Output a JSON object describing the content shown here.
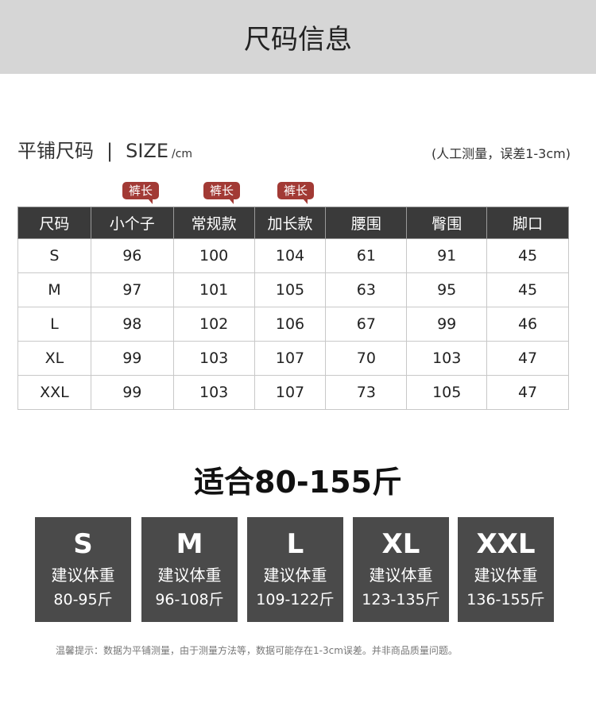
{
  "banner": {
    "title": "尺码信息"
  },
  "section": {
    "title": "平铺尺码",
    "separator": "|",
    "size_label": "SIZE",
    "unit": "/cm",
    "note": "(人工测量，误差1-3cm)"
  },
  "tags": [
    "裤长",
    "裤长",
    "裤长"
  ],
  "colors": {
    "header_bg": "#3a3a3a",
    "tag": "#a23a35",
    "box_bg": "#4a4a4a",
    "banner": "#d6d6d6"
  },
  "table": {
    "headers": [
      "尺码",
      "小个子",
      "常规款",
      "加长款",
      "腰围",
      "臀围",
      "脚口"
    ],
    "rows": [
      [
        "S",
        "96",
        "100",
        "104",
        "61",
        "91",
        "45"
      ],
      [
        "M",
        "97",
        "101",
        "105",
        "63",
        "95",
        "45"
      ],
      [
        "L",
        "98",
        "102",
        "106",
        "67",
        "99",
        "46"
      ],
      [
        "XL",
        "99",
        "103",
        "107",
        "70",
        "103",
        "47"
      ],
      [
        "XXL",
        "99",
        "103",
        "107",
        "73",
        "105",
        "47"
      ]
    ]
  },
  "fit": {
    "title": "适合80-155斤"
  },
  "weights": [
    {
      "size": "S",
      "label": "建议体重",
      "range": "80-95斤"
    },
    {
      "size": "M",
      "label": "建议体重",
      "range": "96-108斤"
    },
    {
      "size": "L",
      "label": "建议体重",
      "range": "109-122斤"
    },
    {
      "size": "XL",
      "label": "建议体重",
      "range": "123-135斤"
    },
    {
      "size": "XXL",
      "label": "建议体重",
      "range": "136-155斤"
    }
  ],
  "footer": "温馨提示：数据为平铺测量，由于测量方法等，数据可能存在1-3cm误差。并非商品质量问题。"
}
